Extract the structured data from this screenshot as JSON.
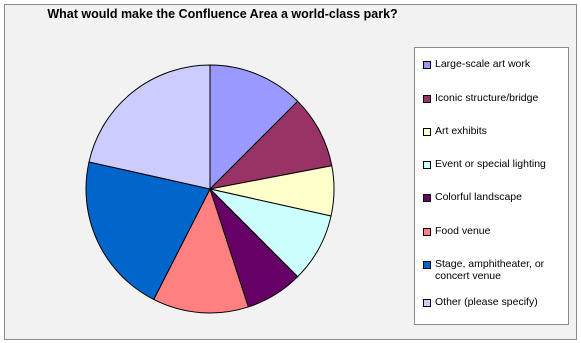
{
  "chart_data": {
    "type": "pie",
    "title": "What would make the Confluence Area a world-class park?",
    "series": [
      {
        "name": "Large-scale art work",
        "value": 12.5,
        "color": "#9999ff"
      },
      {
        "name": "Iconic structure/bridge",
        "value": 9.5,
        "color": "#993366"
      },
      {
        "name": "Art exhibits",
        "value": 6.5,
        "color": "#ffffcc"
      },
      {
        "name": "Event or special lighting",
        "value": 9.0,
        "color": "#ccffff"
      },
      {
        "name": "Colorful landscape",
        "value": 7.5,
        "color": "#660066"
      },
      {
        "name": "Food venue",
        "value": 12.5,
        "color": "#ff8080"
      },
      {
        "name": "Stage, amphitheater, or concert venue",
        "value": 21.0,
        "color": "#0066cc"
      },
      {
        "name": "Other (please specify)",
        "value": 21.5,
        "color": "#ccccff"
      }
    ],
    "legend_position": "right",
    "start_angle": "top",
    "direction": "clockwise"
  }
}
